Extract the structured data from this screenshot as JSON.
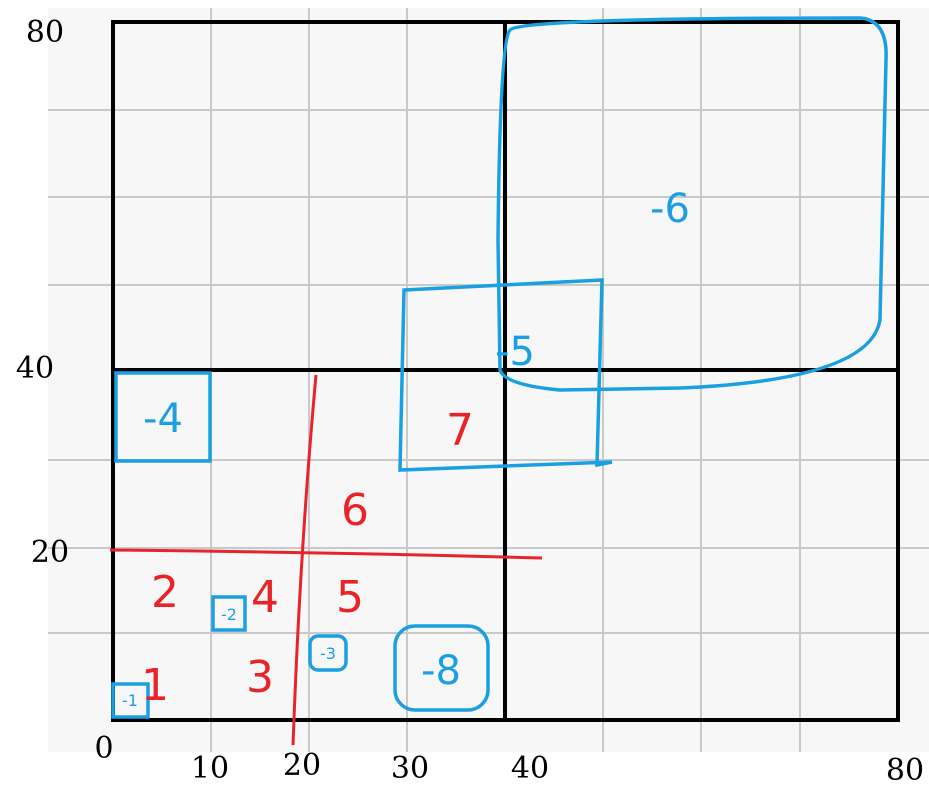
{
  "y_axis_labels": [
    "80",
    "40",
    "20"
  ],
  "x_axis_labels": [
    "0",
    "10",
    "20",
    "30",
    "40",
    "80"
  ],
  "regions": [
    "2",
    "4",
    "5",
    "6",
    "7",
    "1",
    "3"
  ],
  "boxes": [
    "-6",
    "-5",
    "-4",
    "-8",
    "-3",
    "-2",
    "-1"
  ]
}
